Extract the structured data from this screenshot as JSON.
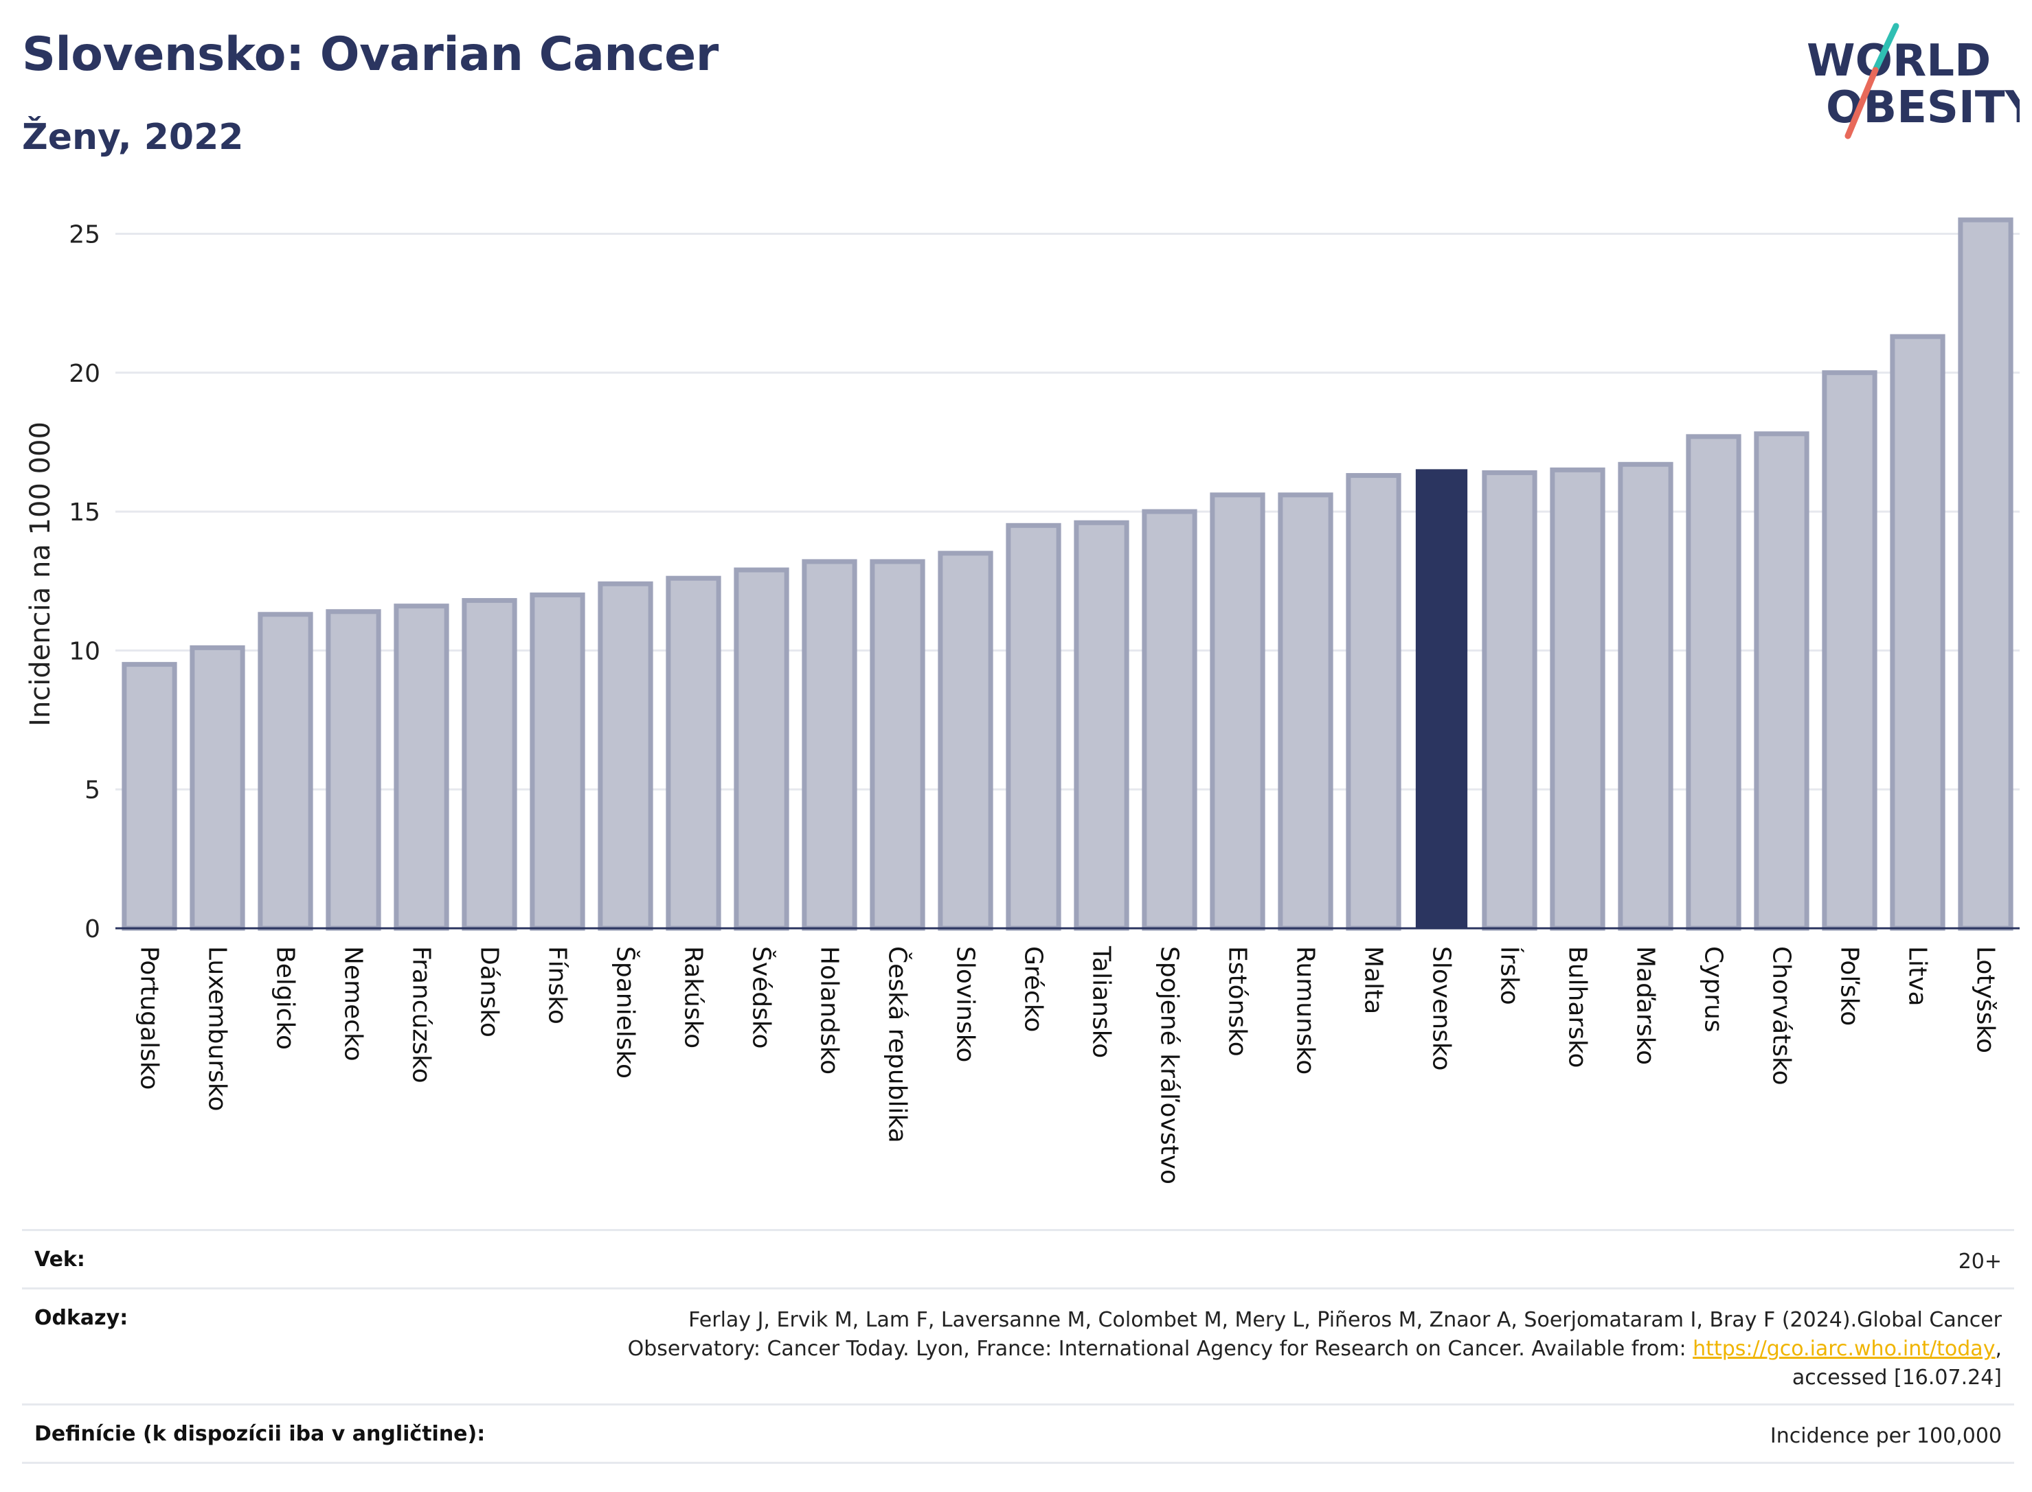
{
  "header": {
    "title": "Slovensko: Ovarian Cancer",
    "subtitle": "Ženy, 2022"
  },
  "logo": {
    "line1": "WORLD",
    "line2": "OBESITY",
    "colors": {
      "text": "#2b3560",
      "slash_top": "#2fbfb3",
      "slash_bottom": "#e8695a"
    }
  },
  "chart_data": {
    "type": "bar",
    "title": "Slovensko: Ovarian Cancer",
    "subtitle": "Ženy, 2022",
    "xlabel": "",
    "ylabel": "Incidencia na 100 000",
    "ylim": [
      0,
      26
    ],
    "yticks": [
      0,
      5,
      10,
      15,
      20,
      25
    ],
    "grid": true,
    "legend": "none",
    "highlight_category": "Slovensko",
    "colors": {
      "bar": "#bfc2d0",
      "bar_border": "#9ea3ba",
      "highlight": "#2b3560",
      "grid": "#e6e8ee",
      "axis": "#2b3560"
    },
    "categories": [
      "Portugalsko",
      "Luxembursko",
      "Belgicko",
      "Nemecko",
      "Francúzsko",
      "Dánsko",
      "Fínsko",
      "Španielsko",
      "Rakúsko",
      "Švédsko",
      "Holandsko",
      "Česká republika",
      "Slovinsko",
      "Grécko",
      "Taliansko",
      "Spojené kráľovstvo",
      "Estónsko",
      "Rumunsko",
      "Malta",
      "Slovensko",
      "Írsko",
      "Bulharsko",
      "Maďarsko",
      "Cyprus",
      "Chorvátsko",
      "Poľsko",
      "Litva",
      "Lotyšsko"
    ],
    "values": [
      9.5,
      10.1,
      11.3,
      11.4,
      11.6,
      11.8,
      12.0,
      12.4,
      12.6,
      12.9,
      13.2,
      13.2,
      13.5,
      14.5,
      14.6,
      15.0,
      15.6,
      15.6,
      16.3,
      16.5,
      16.4,
      16.5,
      16.7,
      17.7,
      17.8,
      20.0,
      21.3,
      25.5
    ]
  },
  "info": {
    "age_label": "Vek:",
    "age_value": "20+",
    "ref_label": "Odkazy:",
    "ref_line1": "Ferlay J, Ervik M, Lam F, Laversanne M, Colombet M, Mery L, Piñeros M, Znaor A, Soerjomataram I, Bray F (2024).Global Cancer",
    "ref_line2_pre": "Observatory: Cancer Today. Lyon, France: International Agency for Research on Cancer. Available from: ",
    "ref_link": "https://gco.iarc.who.int/today",
    "ref_line2_post": ",",
    "ref_line3": "accessed [16.07.24]",
    "def_label": "Definície (k dispozícii iba v angličtine):",
    "def_value": "Incidence per 100,000"
  }
}
